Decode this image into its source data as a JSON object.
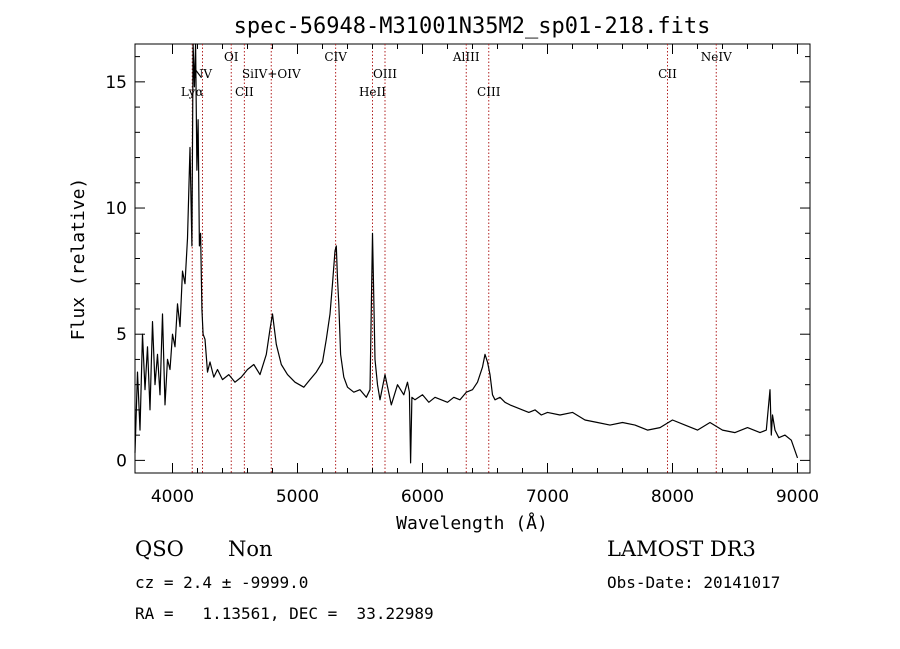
{
  "chart_data": {
    "type": "line",
    "title": "spec-56948-M31001N35M2_sp01-218.fits",
    "xlabel": "Wavelength (Å)",
    "ylabel": "Flux (relative)",
    "xlim": [
      3700,
      9100
    ],
    "ylim": [
      -0.5,
      16.5
    ],
    "xticks": [
      4000,
      5000,
      6000,
      7000,
      8000,
      9000
    ],
    "yticks": [
      0,
      5,
      10,
      15
    ],
    "grid": false,
    "series": [
      {
        "x": [
          3700,
          3720,
          3740,
          3760,
          3780,
          3800,
          3820,
          3840,
          3860,
          3880,
          3900,
          3920,
          3940,
          3960,
          3980,
          4000,
          4020,
          4040,
          4060,
          4080,
          4100,
          4120,
          4140,
          4155,
          4165,
          4175,
          4185,
          4195,
          4205,
          4215,
          4225,
          4235,
          4245,
          4260,
          4280,
          4300,
          4330,
          4360,
          4400,
          4450,
          4500,
          4550,
          4600,
          4650,
          4700,
          4750,
          4780,
          4800,
          4830,
          4870,
          4920,
          4980,
          5050,
          5100,
          5150,
          5200,
          5230,
          5260,
          5280,
          5300,
          5310,
          5320,
          5330,
          5345,
          5370,
          5400,
          5450,
          5500,
          5550,
          5580,
          5600,
          5620,
          5640,
          5660,
          5700,
          5750,
          5800,
          5850,
          5880,
          5895,
          5905,
          5915,
          5940,
          6000,
          6050,
          6100,
          6150,
          6200,
          6250,
          6300,
          6350,
          6400,
          6440,
          6480,
          6500,
          6520,
          6540,
          6560,
          6580,
          6620,
          6660,
          6700,
          6750,
          6800,
          6850,
          6900,
          6950,
          7000,
          7100,
          7200,
          7300,
          7400,
          7500,
          7600,
          7700,
          7800,
          7900,
          8000,
          8100,
          8200,
          8300,
          8400,
          8500,
          8600,
          8700,
          8750,
          8780,
          8790,
          8800,
          8820,
          8850,
          8900,
          8950,
          9000
        ],
        "y": [
          0.3,
          3.5,
          1.2,
          5.0,
          2.8,
          4.5,
          2.0,
          5.5,
          3.0,
          4.2,
          2.6,
          5.8,
          2.2,
          4.0,
          3.6,
          5.0,
          4.5,
          6.2,
          5.3,
          7.5,
          7.0,
          8.8,
          12.4,
          8.5,
          16.5,
          14.8,
          17.0,
          11.5,
          13.5,
          8.5,
          9.0,
          6.0,
          5.0,
          4.8,
          3.5,
          3.9,
          3.3,
          3.6,
          3.2,
          3.4,
          3.1,
          3.3,
          3.6,
          3.8,
          3.4,
          4.2,
          5.2,
          5.8,
          4.6,
          3.8,
          3.4,
          3.1,
          2.9,
          3.2,
          3.5,
          3.9,
          4.8,
          5.8,
          7.0,
          8.3,
          8.5,
          7.2,
          6.2,
          4.2,
          3.3,
          2.9,
          2.7,
          2.8,
          2.5,
          2.8,
          9.0,
          4.0,
          3.0,
          2.4,
          3.4,
          2.2,
          3.0,
          2.6,
          3.1,
          2.7,
          -0.1,
          2.5,
          2.4,
          2.6,
          2.3,
          2.5,
          2.4,
          2.3,
          2.5,
          2.4,
          2.7,
          2.8,
          3.1,
          3.7,
          4.2,
          3.9,
          3.4,
          2.6,
          2.4,
          2.5,
          2.3,
          2.2,
          2.1,
          2.0,
          1.9,
          2.0,
          1.8,
          1.9,
          1.8,
          1.9,
          1.6,
          1.5,
          1.4,
          1.5,
          1.4,
          1.2,
          1.3,
          1.6,
          1.4,
          1.2,
          1.5,
          1.2,
          1.1,
          1.3,
          1.1,
          1.2,
          2.8,
          1.0,
          1.8,
          1.2,
          0.9,
          1.0,
          0.8,
          0.1
        ]
      }
    ],
    "lines": [
      {
        "label": "Lyα",
        "x": 4158,
        "row": 2
      },
      {
        "label": "NV",
        "x": 4240,
        "row": 1
      },
      {
        "label": "OI",
        "x": 4470,
        "row": 0
      },
      {
        "label": "CII",
        "x": 4575,
        "row": 2
      },
      {
        "label": "SiIV+OIV",
        "x": 4790,
        "row": 1
      },
      {
        "label": "CIV",
        "x": 5305,
        "row": 0
      },
      {
        "label": "HeII",
        "x": 5600,
        "row": 2
      },
      {
        "label": "OIII",
        "x": 5700,
        "row": 1
      },
      {
        "label": "AlIII",
        "x": 6350,
        "row": 0
      },
      {
        "label": "CIII",
        "x": 6530,
        "row": 2
      },
      {
        "label": "CII",
        "x": 7960,
        "row": 1
      },
      {
        "label": "NeIV",
        "x": 8350,
        "row": 0
      }
    ],
    "line_color": "#b22222"
  },
  "info": {
    "class": "QSO",
    "subclass": "Non",
    "survey": "LAMOST DR3",
    "cz": "cz = 2.4 ± -9999.0",
    "obs_date": "Obs-Date: 20141017",
    "coords": "RA =   1.13561, DEC =  33.22989"
  }
}
